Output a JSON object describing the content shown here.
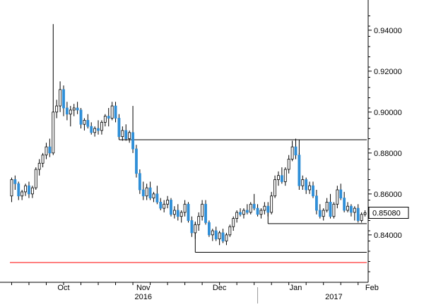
{
  "chart_data": {
    "type": "candlestick",
    "title": "",
    "xlabel": "",
    "ylabel": "",
    "ylim": [
      0.822,
      0.952
    ],
    "y_ticks": [
      0.84,
      0.86,
      0.88,
      0.9,
      0.92,
      0.94
    ],
    "y_tick_labels": [
      "0.84000",
      "0.86000",
      "0.88000",
      "0.90000",
      "0.92000",
      "0.94000"
    ],
    "y_axis_position": "right",
    "grid": false,
    "legend": "none",
    "colors": {
      "up": "#ffffff",
      "down": "#2f8fd8",
      "wick": "#000000",
      "axis": "#000000",
      "support": "#ff0000"
    },
    "x_month_labels": [
      {
        "label": "Oct",
        "index": 15
      },
      {
        "label": "Nov",
        "index": 38
      },
      {
        "label": "Dec",
        "index": 60
      },
      {
        "label": "Jan",
        "index": 82
      },
      {
        "label": "Feb",
        "index": 104
      }
    ],
    "x_year_labels": [
      {
        "label": "2016",
        "index": 38
      },
      {
        "label": "2017",
        "index": 93
      }
    ],
    "year_separator_index": 71,
    "last_value": 0.8508,
    "last_value_label": "0.85080",
    "horizontal_lines": [
      {
        "level": 0.8865,
        "from_index": 31,
        "to_index": 110
      },
      {
        "level": 0.8455,
        "from_index": 74,
        "to_index": 110
      },
      {
        "level": 0.8315,
        "from_index": 53,
        "to_index": 110
      },
      {
        "level": 0.8265,
        "from_index": 0,
        "to_index": 110,
        "color": "#ff0000"
      }
    ],
    "vertical_markers": [
      {
        "index": 31,
        "from": 0.8865,
        "to": 0.8915
      },
      {
        "index": 83,
        "from": 0.8865,
        "to": 0.8795
      },
      {
        "index": 74,
        "from": 0.8455,
        "to": 0.8515
      },
      {
        "index": 53,
        "from": 0.8315,
        "to": 0.8465
      }
    ],
    "candles": [
      [
        0.859,
        0.868,
        0.856,
        0.867
      ],
      [
        0.867,
        0.869,
        0.862,
        0.865
      ],
      [
        0.865,
        0.866,
        0.857,
        0.859
      ],
      [
        0.859,
        0.862,
        0.857,
        0.861
      ],
      [
        0.861,
        0.865,
        0.859,
        0.864
      ],
      [
        0.864,
        0.866,
        0.858,
        0.86
      ],
      [
        0.86,
        0.864,
        0.858,
        0.863
      ],
      [
        0.863,
        0.873,
        0.862,
        0.872
      ],
      [
        0.872,
        0.877,
        0.869,
        0.875
      ],
      [
        0.875,
        0.88,
        0.873,
        0.879
      ],
      [
        0.879,
        0.885,
        0.877,
        0.883
      ],
      [
        0.883,
        0.887,
        0.878,
        0.88
      ],
      [
        0.88,
        0.943,
        0.879,
        0.9
      ],
      [
        0.9,
        0.906,
        0.897,
        0.903
      ],
      [
        0.903,
        0.915,
        0.9,
        0.911
      ],
      [
        0.911,
        0.913,
        0.898,
        0.902
      ],
      [
        0.902,
        0.905,
        0.896,
        0.899
      ],
      [
        0.899,
        0.903,
        0.893,
        0.901
      ],
      [
        0.901,
        0.904,
        0.898,
        0.902
      ],
      [
        0.902,
        0.905,
        0.899,
        0.901
      ],
      [
        0.901,
        0.902,
        0.892,
        0.894
      ],
      [
        0.894,
        0.897,
        0.891,
        0.896
      ],
      [
        0.896,
        0.899,
        0.892,
        0.893
      ],
      [
        0.893,
        0.895,
        0.889,
        0.89
      ],
      [
        0.89,
        0.893,
        0.888,
        0.892
      ],
      [
        0.892,
        0.896,
        0.889,
        0.891
      ],
      [
        0.891,
        0.896,
        0.889,
        0.895
      ],
      [
        0.895,
        0.899,
        0.893,
        0.898
      ],
      [
        0.898,
        0.902,
        0.893,
        0.897
      ],
      [
        0.897,
        0.905,
        0.896,
        0.903
      ],
      [
        0.903,
        0.905,
        0.895,
        0.897
      ],
      [
        0.897,
        0.899,
        0.887,
        0.888
      ],
      [
        0.888,
        0.893,
        0.886,
        0.891
      ],
      [
        0.891,
        0.894,
        0.886,
        0.887
      ],
      [
        0.887,
        0.891,
        0.885,
        0.89
      ],
      [
        0.89,
        0.903,
        0.88,
        0.882
      ],
      [
        0.882,
        0.884,
        0.868,
        0.87
      ],
      [
        0.87,
        0.872,
        0.86,
        0.862
      ],
      [
        0.862,
        0.866,
        0.857,
        0.859
      ],
      [
        0.859,
        0.865,
        0.857,
        0.863
      ],
      [
        0.863,
        0.866,
        0.857,
        0.858
      ],
      [
        0.858,
        0.861,
        0.856,
        0.86
      ],
      [
        0.86,
        0.864,
        0.855,
        0.856
      ],
      [
        0.856,
        0.858,
        0.852,
        0.853
      ],
      [
        0.853,
        0.857,
        0.851,
        0.855
      ],
      [
        0.855,
        0.859,
        0.853,
        0.857
      ],
      [
        0.857,
        0.858,
        0.849,
        0.85
      ],
      [
        0.85,
        0.854,
        0.848,
        0.852
      ],
      [
        0.852,
        0.855,
        0.847,
        0.849
      ],
      [
        0.849,
        0.852,
        0.846,
        0.851
      ],
      [
        0.851,
        0.857,
        0.849,
        0.855
      ],
      [
        0.855,
        0.856,
        0.846,
        0.847
      ],
      [
        0.847,
        0.849,
        0.839,
        0.841
      ],
      [
        0.841,
        0.846,
        0.838,
        0.845
      ],
      [
        0.845,
        0.851,
        0.842,
        0.849
      ],
      [
        0.849,
        0.857,
        0.847,
        0.855
      ],
      [
        0.855,
        0.857,
        0.845,
        0.846
      ],
      [
        0.846,
        0.847,
        0.839,
        0.84
      ],
      [
        0.84,
        0.843,
        0.837,
        0.842
      ],
      [
        0.842,
        0.844,
        0.837,
        0.838
      ],
      [
        0.838,
        0.842,
        0.835,
        0.841
      ],
      [
        0.841,
        0.843,
        0.836,
        0.837
      ],
      [
        0.837,
        0.841,
        0.835,
        0.84
      ],
      [
        0.84,
        0.845,
        0.839,
        0.844
      ],
      [
        0.844,
        0.849,
        0.842,
        0.848
      ],
      [
        0.848,
        0.852,
        0.846,
        0.851
      ],
      [
        0.851,
        0.853,
        0.849,
        0.85
      ],
      [
        0.85,
        0.853,
        0.848,
        0.852
      ],
      [
        0.852,
        0.855,
        0.85,
        0.851
      ],
      [
        0.851,
        0.856,
        0.85,
        0.855
      ],
      [
        0.855,
        0.86,
        0.852,
        0.853
      ],
      [
        0.853,
        0.855,
        0.849,
        0.85
      ],
      [
        0.85,
        0.853,
        0.848,
        0.852
      ],
      [
        0.852,
        0.856,
        0.85,
        0.854
      ],
      [
        0.854,
        0.856,
        0.849,
        0.851
      ],
      [
        0.851,
        0.861,
        0.85,
        0.859
      ],
      [
        0.859,
        0.869,
        0.858,
        0.867
      ],
      [
        0.867,
        0.871,
        0.864,
        0.869
      ],
      [
        0.869,
        0.873,
        0.865,
        0.866
      ],
      [
        0.866,
        0.873,
        0.864,
        0.872
      ],
      [
        0.872,
        0.879,
        0.87,
        0.877
      ],
      [
        0.877,
        0.886,
        0.876,
        0.883
      ],
      [
        0.883,
        0.887,
        0.877,
        0.879
      ],
      [
        0.879,
        0.88,
        0.862,
        0.864
      ],
      [
        0.864,
        0.869,
        0.862,
        0.867
      ],
      [
        0.867,
        0.868,
        0.86,
        0.862
      ],
      [
        0.862,
        0.866,
        0.86,
        0.864
      ],
      [
        0.864,
        0.866,
        0.858,
        0.859
      ],
      [
        0.859,
        0.862,
        0.85,
        0.852
      ],
      [
        0.852,
        0.855,
        0.848,
        0.849
      ],
      [
        0.849,
        0.853,
        0.847,
        0.852
      ],
      [
        0.852,
        0.858,
        0.851,
        0.856
      ],
      [
        0.856,
        0.86,
        0.848,
        0.849
      ],
      [
        0.849,
        0.856,
        0.848,
        0.855
      ],
      [
        0.855,
        0.864,
        0.853,
        0.862
      ],
      [
        0.862,
        0.865,
        0.857,
        0.858
      ],
      [
        0.858,
        0.861,
        0.851,
        0.852
      ],
      [
        0.852,
        0.856,
        0.851,
        0.854
      ],
      [
        0.854,
        0.855,
        0.849,
        0.851
      ],
      [
        0.851,
        0.854,
        0.847,
        0.853
      ],
      [
        0.853,
        0.855,
        0.846,
        0.847
      ],
      [
        0.847,
        0.851,
        0.846,
        0.85
      ],
      [
        0.85,
        0.852,
        0.849,
        0.8508
      ]
    ]
  }
}
